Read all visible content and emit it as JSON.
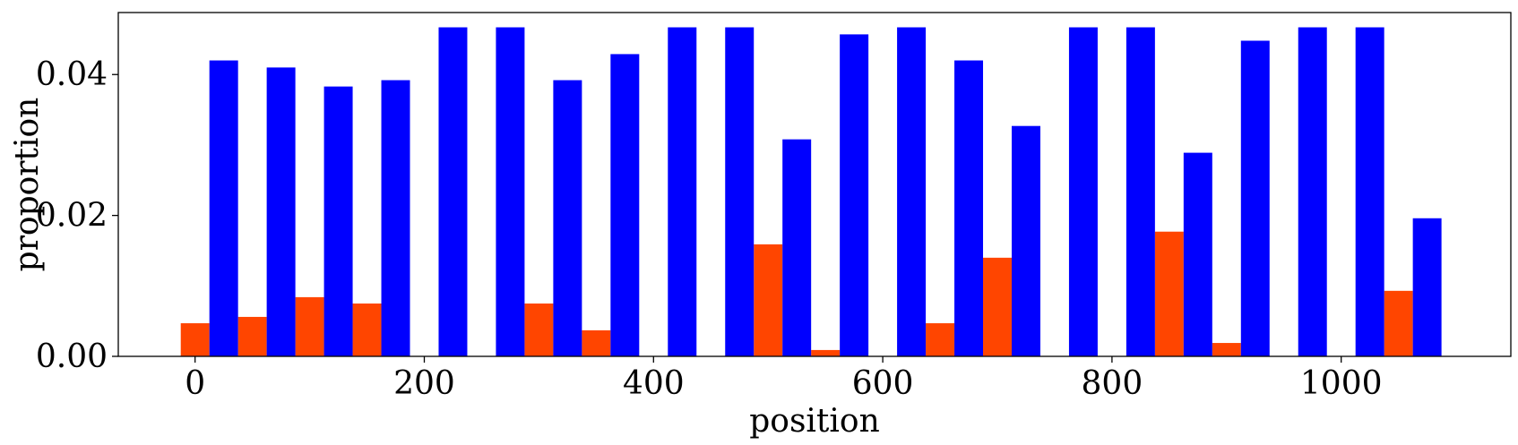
{
  "chart_data": {
    "type": "bar",
    "xlabel": "position",
    "ylabel": "proportion",
    "xlim": [
      -67,
      1148
    ],
    "ylim": [
      0,
      0.0488
    ],
    "xticks": [
      0,
      200,
      400,
      600,
      800,
      1000
    ],
    "xtick_labels": [
      "0",
      "200",
      "400",
      "600",
      "800",
      "1000"
    ],
    "yticks": [
      0.0,
      0.02,
      0.04
    ],
    "ytick_labels": [
      "0.00",
      "0.02",
      "0.04"
    ],
    "grid": false,
    "bar_width": 25,
    "series": [
      {
        "color": "#ff4500",
        "points": [
          {
            "x": 0,
            "y": 0.0047
          },
          {
            "x": 50,
            "y": 0.0056
          },
          {
            "x": 100,
            "y": 0.0084
          },
          {
            "x": 150,
            "y": 0.0075
          },
          {
            "x": 200,
            "y": 0.0
          },
          {
            "x": 250,
            "y": 0.0
          },
          {
            "x": 300,
            "y": 0.0075
          },
          {
            "x": 350,
            "y": 0.0037
          },
          {
            "x": 400,
            "y": 0.0
          },
          {
            "x": 450,
            "y": 0.0
          },
          {
            "x": 500,
            "y": 0.0159
          },
          {
            "x": 550,
            "y": 0.0009
          },
          {
            "x": 600,
            "y": 0.0
          },
          {
            "x": 650,
            "y": 0.0047
          },
          {
            "x": 700,
            "y": 0.014
          },
          {
            "x": 750,
            "y": 0.0
          },
          {
            "x": 800,
            "y": 0.0
          },
          {
            "x": 850,
            "y": 0.0177
          },
          {
            "x": 900,
            "y": 0.0019
          },
          {
            "x": 950,
            "y": 0.0
          },
          {
            "x": 1000,
            "y": 0.0
          },
          {
            "x": 1050,
            "y": 0.0093
          }
        ]
      },
      {
        "color": "#0000ff",
        "points": [
          {
            "x": 25,
            "y": 0.042
          },
          {
            "x": 75,
            "y": 0.041
          },
          {
            "x": 125,
            "y": 0.0383
          },
          {
            "x": 175,
            "y": 0.0392
          },
          {
            "x": 225,
            "y": 0.0467
          },
          {
            "x": 275,
            "y": 0.0467
          },
          {
            "x": 325,
            "y": 0.0392
          },
          {
            "x": 375,
            "y": 0.0429
          },
          {
            "x": 425,
            "y": 0.0467
          },
          {
            "x": 475,
            "y": 0.0467
          },
          {
            "x": 525,
            "y": 0.0308
          },
          {
            "x": 575,
            "y": 0.0457
          },
          {
            "x": 625,
            "y": 0.0467
          },
          {
            "x": 675,
            "y": 0.042
          },
          {
            "x": 725,
            "y": 0.0327
          },
          {
            "x": 775,
            "y": 0.0467
          },
          {
            "x": 825,
            "y": 0.0467
          },
          {
            "x": 875,
            "y": 0.0289
          },
          {
            "x": 925,
            "y": 0.0448
          },
          {
            "x": 975,
            "y": 0.0467
          },
          {
            "x": 1025,
            "y": 0.0467
          },
          {
            "x": 1075,
            "y": 0.0196
          }
        ]
      }
    ]
  }
}
